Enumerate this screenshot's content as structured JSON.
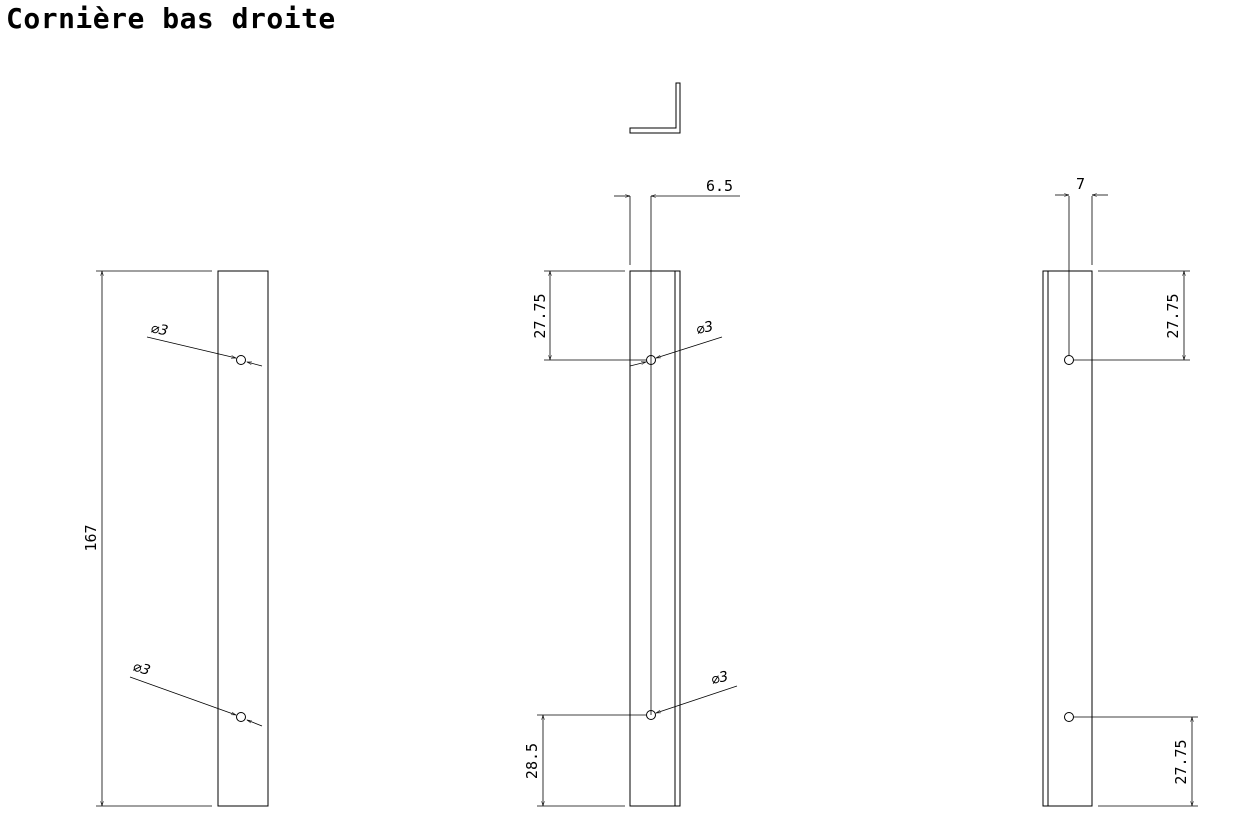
{
  "title": "Cornière bas droite",
  "dimensions": {
    "length": "167",
    "thickness": "6.5",
    "side_width": "7",
    "hole_top_offset": "27.75",
    "hole_bottom_offset_mid": "28.5",
    "hole_top_offset_right": "27.75",
    "hole_bottom_offset_right": "27.75"
  },
  "holes": {
    "left_top": "⌀3",
    "left_bottom": "⌀3",
    "mid_top": "⌀3",
    "mid_bottom": "⌀3"
  }
}
